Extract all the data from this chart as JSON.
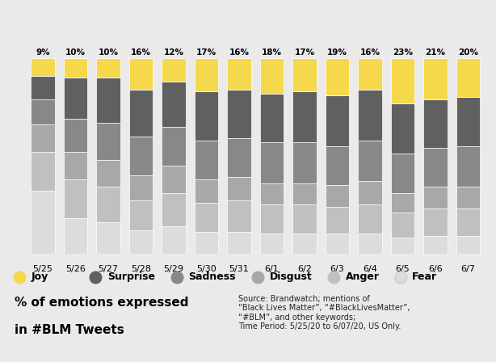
{
  "dates": [
    "5/25",
    "5/26",
    "5/27",
    "5/28",
    "5/29",
    "5/30",
    "5/31",
    "6/1",
    "6/2",
    "6/3",
    "6/4",
    "6/5",
    "6/6",
    "6/7"
  ],
  "joy_pct": [
    9,
    10,
    10,
    16,
    12,
    17,
    16,
    18,
    17,
    19,
    16,
    23,
    21,
    20
  ],
  "emotions": {
    "Fear": [
      32,
      18,
      16,
      12,
      14,
      11,
      11,
      10,
      10,
      10,
      10,
      8,
      9,
      9
    ],
    "Anger": [
      20,
      20,
      18,
      15,
      17,
      15,
      16,
      15,
      15,
      14,
      15,
      13,
      14,
      14
    ],
    "Disgust": [
      14,
      14,
      14,
      13,
      14,
      12,
      12,
      11,
      11,
      11,
      12,
      10,
      11,
      11
    ],
    "Sadness": [
      13,
      17,
      19,
      20,
      20,
      20,
      20,
      21,
      21,
      20,
      21,
      20,
      20,
      21
    ],
    "Surprise": [
      12,
      21,
      23,
      24,
      23,
      25,
      25,
      25,
      26,
      26,
      26,
      26,
      25,
      25
    ],
    "Joy": [
      9,
      10,
      10,
      16,
      12,
      17,
      16,
      18,
      17,
      19,
      16,
      23,
      21,
      20
    ]
  },
  "colors": {
    "Fear": "#dcdcdc",
    "Anger": "#c0c0c0",
    "Disgust": "#a8a8a8",
    "Sadness": "#888888",
    "Surprise": "#606060",
    "Joy": "#f5d84b"
  },
  "legend_colors": {
    "Joy": "#f5d84b",
    "Surprise": "#606060",
    "Sadness": "#888888",
    "Disgust": "#a8a8a8",
    "Anger": "#c0c0c0",
    "Fear": "#dcdcdc"
  },
  "title_line1": "% of emotions expressed",
  "title_line2": "in #BLM Tweets",
  "source_text": "Source: Brandwatch; mentions of\n“Black Lives Matter”, “#BlackLivesMatter”,\n“#BLM”, and other keywords;\nTime Period: 5/25/20 to 6/07/20, US Only.",
  "bg_color": "#eaeaea",
  "bar_bg_color": "#e8edf2",
  "bar_width": 0.72
}
